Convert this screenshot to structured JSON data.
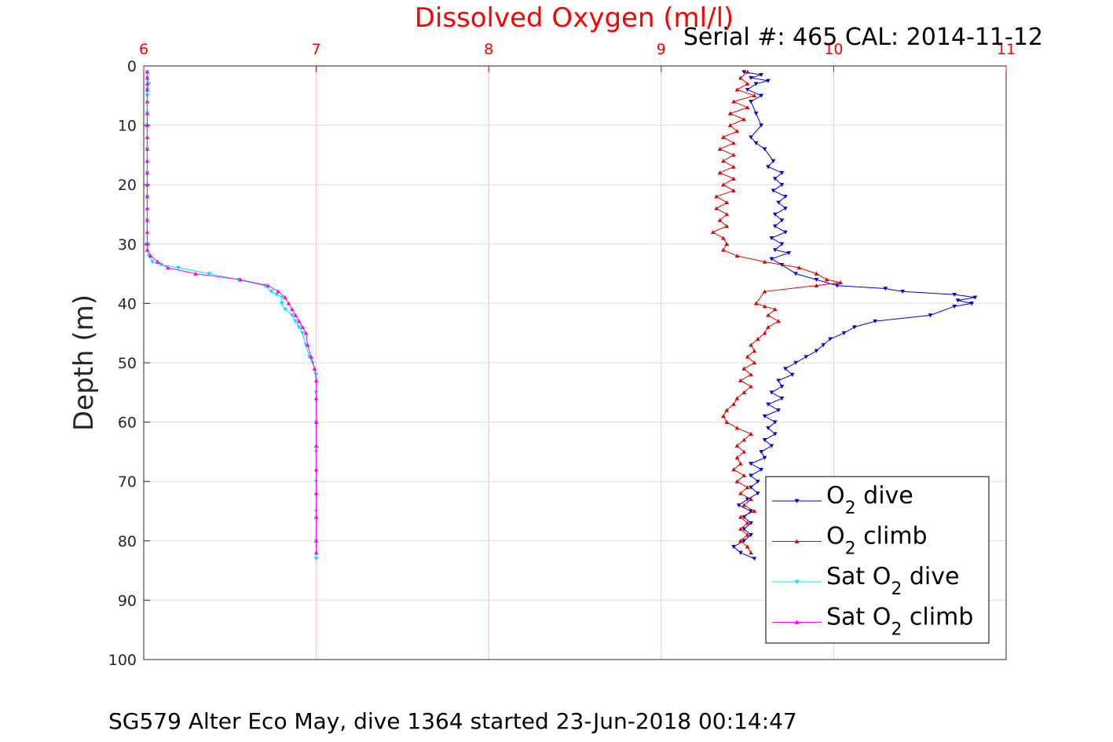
{
  "chart_data": {
    "type": "line",
    "title": "Dissolved Oxygen (ml/l)",
    "subtitle": "Serial #: 465  CAL: 2014-11-12",
    "footer": "SG579 Alter Eco May, dive 1364 started 23-Jun-2018 00:14:47",
    "ylabel": "Depth (m)",
    "xlim": [
      6,
      11
    ],
    "ylim": [
      0,
      100
    ],
    "y_reversed": true,
    "x_axis_position": "top",
    "grid": true,
    "xticks": [
      "6",
      "7",
      "8",
      "9",
      "10",
      "11"
    ],
    "yticks": [
      "0",
      "10",
      "20",
      "30",
      "40",
      "50",
      "60",
      "70",
      "80",
      "90",
      "100"
    ],
    "legend_position": "bottom-right",
    "series": [
      {
        "name": "O2 dive",
        "legend": {
          "pre": "O",
          "sub": "2",
          "post": " dive"
        },
        "color": "#0000d0",
        "marker": "triangle-down",
        "points": [
          [
            9.48,
            1
          ],
          [
            9.58,
            1.5
          ],
          [
            9.52,
            2
          ],
          [
            9.62,
            2.5
          ],
          [
            9.55,
            3
          ],
          [
            9.5,
            4
          ],
          [
            9.58,
            5
          ],
          [
            9.52,
            6
          ],
          [
            9.55,
            8
          ],
          [
            9.58,
            10
          ],
          [
            9.52,
            12
          ],
          [
            9.55,
            13
          ],
          [
            9.6,
            14
          ],
          [
            9.65,
            16
          ],
          [
            9.62,
            17
          ],
          [
            9.7,
            18
          ],
          [
            9.66,
            19
          ],
          [
            9.7,
            20
          ],
          [
            9.65,
            21
          ],
          [
            9.72,
            22
          ],
          [
            9.68,
            23
          ],
          [
            9.72,
            24
          ],
          [
            9.66,
            25
          ],
          [
            9.7,
            26
          ],
          [
            9.66,
            27
          ],
          [
            9.72,
            28
          ],
          [
            9.64,
            29
          ],
          [
            9.7,
            30
          ],
          [
            9.66,
            31
          ],
          [
            9.74,
            31.5
          ],
          [
            9.64,
            32.5
          ],
          [
            9.7,
            33.5
          ],
          [
            9.78,
            35
          ],
          [
            9.9,
            36
          ],
          [
            10.02,
            37
          ],
          [
            10.3,
            37.5
          ],
          [
            10.4,
            38
          ],
          [
            10.7,
            38.5
          ],
          [
            10.82,
            39
          ],
          [
            10.72,
            39.5
          ],
          [
            10.8,
            40
          ],
          [
            10.7,
            40.5
          ],
          [
            10.56,
            42
          ],
          [
            10.24,
            43
          ],
          [
            10.12,
            44
          ],
          [
            10.06,
            45
          ],
          [
            9.98,
            46
          ],
          [
            9.94,
            47
          ],
          [
            9.9,
            48
          ],
          [
            9.84,
            49
          ],
          [
            9.78,
            50
          ],
          [
            9.72,
            51
          ],
          [
            9.76,
            52
          ],
          [
            9.68,
            53
          ],
          [
            9.7,
            54
          ],
          [
            9.64,
            55
          ],
          [
            9.7,
            56
          ],
          [
            9.62,
            57
          ],
          [
            9.68,
            58
          ],
          [
            9.6,
            59
          ],
          [
            9.66,
            60
          ],
          [
            9.62,
            61
          ],
          [
            9.66,
            62
          ],
          [
            9.6,
            63
          ],
          [
            9.64,
            64
          ],
          [
            9.58,
            65
          ],
          [
            9.6,
            66
          ],
          [
            9.52,
            67
          ],
          [
            9.58,
            68
          ],
          [
            9.52,
            69
          ],
          [
            9.56,
            70
          ],
          [
            9.52,
            71
          ],
          [
            9.56,
            72
          ],
          [
            9.5,
            73
          ],
          [
            9.45,
            74
          ],
          [
            9.52,
            75
          ],
          [
            9.48,
            76
          ],
          [
            9.52,
            77
          ],
          [
            9.48,
            78
          ],
          [
            9.52,
            79
          ],
          [
            9.48,
            80
          ],
          [
            9.42,
            81
          ],
          [
            9.46,
            82
          ],
          [
            9.54,
            83
          ]
        ]
      },
      {
        "name": "O2 climb",
        "legend": {
          "pre": "O",
          "sub": "2",
          "post": " climb"
        },
        "color": "#e00000",
        "marker": "triangle-up",
        "points": [
          [
            9.5,
            1
          ],
          [
            9.46,
            2
          ],
          [
            9.5,
            3
          ],
          [
            9.44,
            4
          ],
          [
            9.54,
            5
          ],
          [
            9.42,
            6
          ],
          [
            9.5,
            7
          ],
          [
            9.4,
            8
          ],
          [
            9.48,
            9
          ],
          [
            9.4,
            10
          ],
          [
            9.44,
            11
          ],
          [
            9.36,
            12
          ],
          [
            9.42,
            13
          ],
          [
            9.34,
            14
          ],
          [
            9.42,
            15
          ],
          [
            9.36,
            16
          ],
          [
            9.42,
            17
          ],
          [
            9.34,
            18
          ],
          [
            9.42,
            19
          ],
          [
            9.36,
            20
          ],
          [
            9.42,
            21
          ],
          [
            9.32,
            22
          ],
          [
            9.38,
            23
          ],
          [
            9.32,
            24
          ],
          [
            9.38,
            25
          ],
          [
            9.34,
            26
          ],
          [
            9.38,
            27
          ],
          [
            9.3,
            28
          ],
          [
            9.36,
            29
          ],
          [
            9.38,
            30
          ],
          [
            9.36,
            31
          ],
          [
            9.44,
            32
          ],
          [
            9.6,
            33
          ],
          [
            9.8,
            34
          ],
          [
            9.9,
            35
          ],
          [
            9.96,
            36
          ],
          [
            10.04,
            36.5
          ],
          [
            9.9,
            37
          ],
          [
            9.6,
            38
          ],
          [
            9.55,
            40
          ],
          [
            9.6,
            40.5
          ],
          [
            9.66,
            41
          ],
          [
            9.62,
            42
          ],
          [
            9.68,
            43
          ],
          [
            9.62,
            44
          ],
          [
            9.6,
            45
          ],
          [
            9.56,
            46
          ],
          [
            9.52,
            47
          ],
          [
            9.54,
            48
          ],
          [
            9.5,
            49
          ],
          [
            9.54,
            50
          ],
          [
            9.48,
            51
          ],
          [
            9.52,
            52
          ],
          [
            9.46,
            53
          ],
          [
            9.52,
            54
          ],
          [
            9.48,
            55
          ],
          [
            9.44,
            56
          ],
          [
            9.42,
            57
          ],
          [
            9.38,
            58
          ],
          [
            9.36,
            59
          ],
          [
            9.38,
            60
          ],
          [
            9.44,
            61
          ],
          [
            9.52,
            62
          ],
          [
            9.48,
            63
          ],
          [
            9.44,
            64
          ],
          [
            9.48,
            65
          ],
          [
            9.44,
            66
          ],
          [
            9.46,
            67
          ],
          [
            9.42,
            68
          ],
          [
            9.48,
            69
          ],
          [
            9.44,
            70
          ],
          [
            9.5,
            71
          ],
          [
            9.46,
            72
          ],
          [
            9.52,
            73
          ],
          [
            9.48,
            74
          ],
          [
            9.54,
            75
          ],
          [
            9.46,
            76
          ],
          [
            9.5,
            77
          ],
          [
            9.46,
            78
          ],
          [
            9.5,
            79
          ],
          [
            9.46,
            80
          ],
          [
            9.5,
            81
          ],
          [
            9.52,
            82
          ]
        ]
      },
      {
        "name": "Sat O2 dive",
        "legend": {
          "pre": "Sat O",
          "sub": "2",
          "post": " dive"
        },
        "color": "#00e5ff",
        "marker": "triangle-down",
        "points": [
          [
            6.02,
            1
          ],
          [
            6.02,
            2
          ],
          [
            6.03,
            3
          ],
          [
            6.02,
            4
          ],
          [
            6.02,
            5
          ],
          [
            6.02,
            8
          ],
          [
            6.02,
            10
          ],
          [
            6.02,
            14
          ],
          [
            6.02,
            18
          ],
          [
            6.02,
            22
          ],
          [
            6.02,
            26
          ],
          [
            6.02,
            30
          ],
          [
            6.03,
            32
          ],
          [
            6.05,
            33
          ],
          [
            6.1,
            33.5
          ],
          [
            6.2,
            34
          ],
          [
            6.38,
            35
          ],
          [
            6.55,
            36
          ],
          [
            6.7,
            37
          ],
          [
            6.74,
            38
          ],
          [
            6.77,
            38.5
          ],
          [
            6.8,
            39
          ],
          [
            6.8,
            40
          ],
          [
            6.82,
            41
          ],
          [
            6.86,
            42
          ],
          [
            6.88,
            43
          ],
          [
            6.9,
            44
          ],
          [
            6.92,
            45
          ],
          [
            6.94,
            47
          ],
          [
            6.96,
            49
          ],
          [
            6.98,
            50
          ],
          [
            7.0,
            52
          ],
          [
            7.0,
            55
          ],
          [
            7.0,
            60
          ],
          [
            7.0,
            65
          ],
          [
            7.0,
            70
          ],
          [
            7.0,
            75
          ],
          [
            7.0,
            80
          ],
          [
            7.0,
            83
          ]
        ]
      },
      {
        "name": "Sat O2 climb",
        "legend": {
          "pre": "Sat O",
          "sub": "2",
          "post": " climb"
        },
        "color": "#ff00ff",
        "marker": "triangle-up",
        "points": [
          [
            6.02,
            1
          ],
          [
            6.02,
            2
          ],
          [
            6.02,
            3
          ],
          [
            6.02,
            4
          ],
          [
            6.02,
            6
          ],
          [
            6.02,
            8
          ],
          [
            6.02,
            10
          ],
          [
            6.02,
            12
          ],
          [
            6.02,
            14
          ],
          [
            6.02,
            16
          ],
          [
            6.02,
            18
          ],
          [
            6.02,
            20
          ],
          [
            6.02,
            22
          ],
          [
            6.02,
            24
          ],
          [
            6.02,
            26
          ],
          [
            6.02,
            28
          ],
          [
            6.02,
            30
          ],
          [
            6.02,
            31
          ],
          [
            6.04,
            32
          ],
          [
            6.08,
            33
          ],
          [
            6.14,
            34
          ],
          [
            6.3,
            35
          ],
          [
            6.56,
            36
          ],
          [
            6.72,
            37
          ],
          [
            6.78,
            38
          ],
          [
            6.82,
            39
          ],
          [
            6.84,
            40
          ],
          [
            6.86,
            41
          ],
          [
            6.88,
            42
          ],
          [
            6.9,
            43
          ],
          [
            6.92,
            44
          ],
          [
            6.94,
            45
          ],
          [
            6.95,
            47
          ],
          [
            6.97,
            49
          ],
          [
            6.99,
            51
          ],
          [
            7.0,
            53
          ],
          [
            7.0,
            56
          ],
          [
            7.0,
            60
          ],
          [
            7.0,
            64
          ],
          [
            7.0,
            68
          ],
          [
            7.0,
            72
          ],
          [
            7.0,
            76
          ],
          [
            7.0,
            80
          ],
          [
            7.0,
            82
          ]
        ]
      }
    ]
  }
}
